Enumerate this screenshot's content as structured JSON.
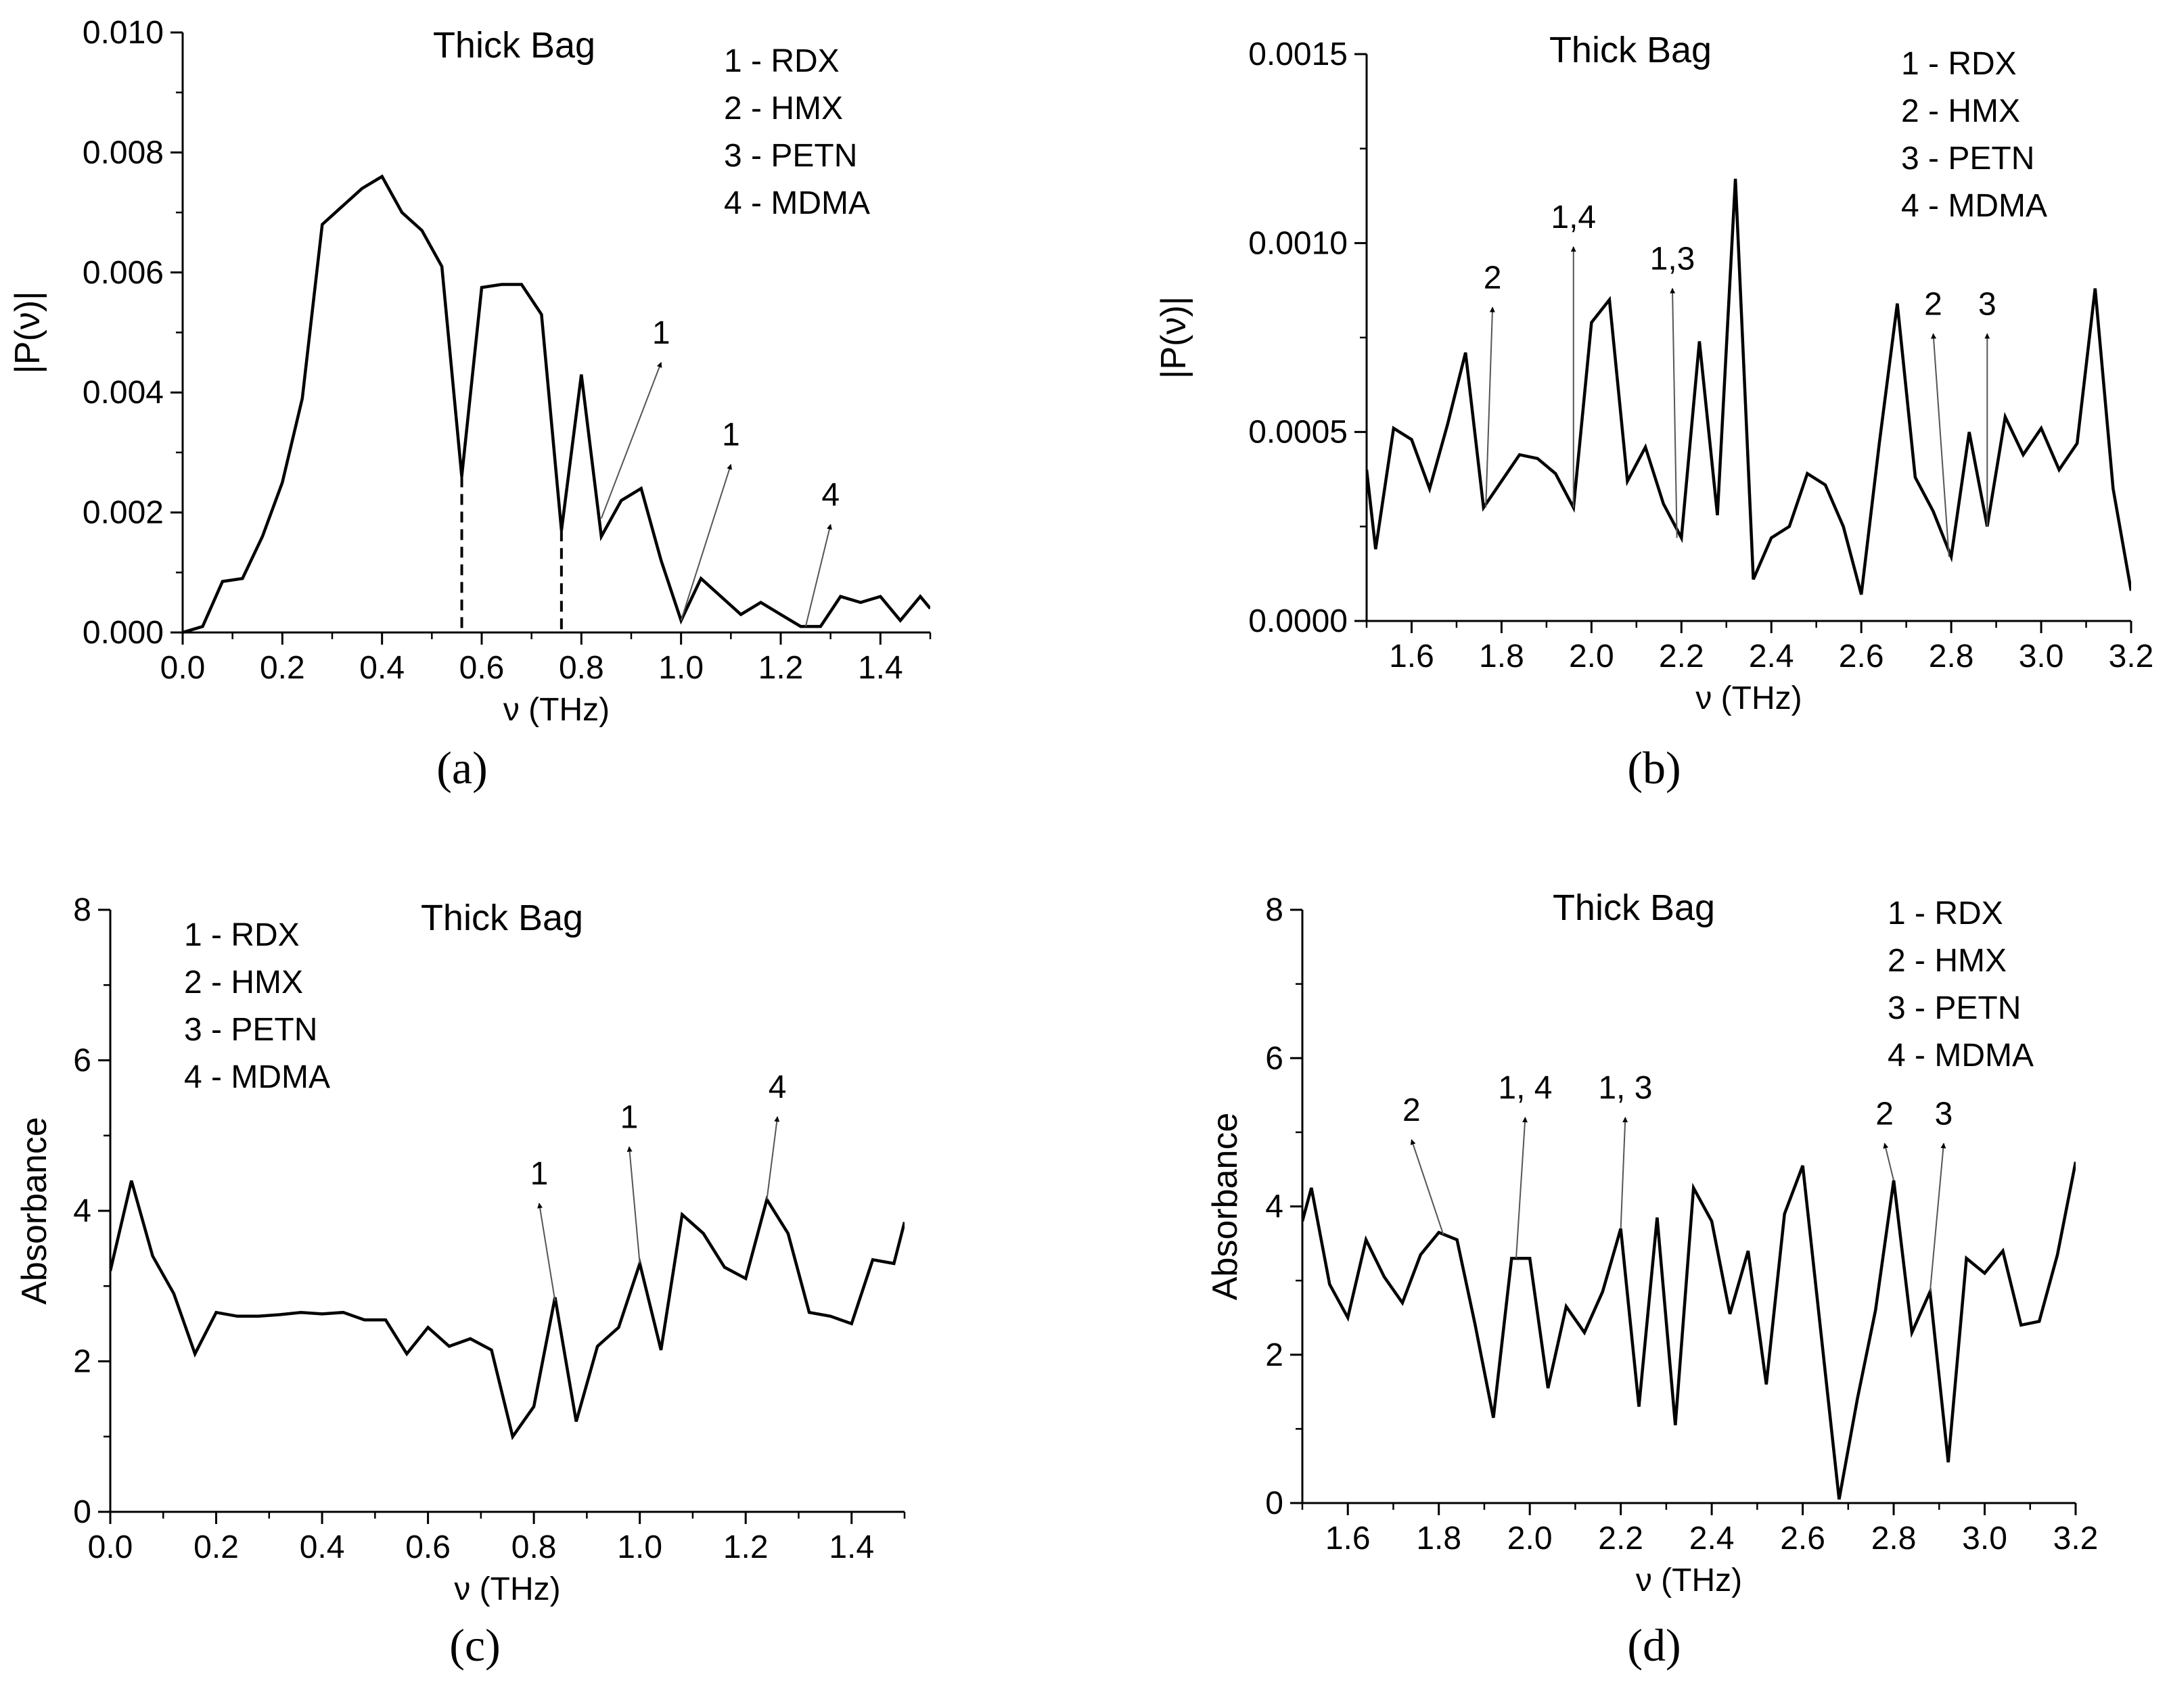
{
  "chart_data": [
    {
      "type": "line",
      "panel_label": "(a)",
      "title": "Thick Bag",
      "xlabel": "ν (THz)",
      "ylabel": "|P(ν)|",
      "xlim": [
        0.0,
        1.5
      ],
      "ylim": [
        0.0,
        0.01
      ],
      "xticks": [
        0.0,
        0.2,
        0.4,
        0.6,
        0.8,
        1.0,
        1.2,
        1.4
      ],
      "xtick_labels": [
        "0.0",
        "0.2",
        "0.4",
        "0.6",
        "0.8",
        "1.0",
        "1.2",
        "1.4"
      ],
      "yticks": [
        0.0,
        0.002,
        0.004,
        0.006,
        0.008,
        0.01
      ],
      "ytick_labels": [
        "0.000",
        "0.002",
        "0.004",
        "0.006",
        "0.008",
        "0.010"
      ],
      "legend": [
        "1 - RDX",
        "2 - HMX",
        "3 - PETN",
        "4 - MDMA"
      ],
      "legend_position": "top-right",
      "series": [
        {
          "name": "Thick Bag",
          "x": [
            0.0,
            0.04,
            0.08,
            0.12,
            0.16,
            0.2,
            0.24,
            0.28,
            0.32,
            0.36,
            0.4,
            0.44,
            0.48,
            0.52,
            0.56,
            0.6,
            0.64,
            0.68,
            0.72,
            0.76,
            0.8,
            0.84,
            0.88,
            0.92,
            0.96,
            1.0,
            1.04,
            1.08,
            1.12,
            1.16,
            1.2,
            1.24,
            1.28,
            1.32,
            1.36,
            1.4,
            1.44,
            1.48,
            1.5
          ],
          "y": [
            0.0,
            0.0001,
            0.00085,
            0.0009,
            0.0016,
            0.0025,
            0.0039,
            0.0068,
            0.0071,
            0.0074,
            0.0076,
            0.007,
            0.0067,
            0.0061,
            0.0026,
            0.00575,
            0.0058,
            0.0058,
            0.0053,
            0.0017,
            0.0043,
            0.0016,
            0.0022,
            0.0024,
            0.0012,
            0.0002,
            0.0009,
            0.0006,
            0.0003,
            0.0005,
            0.0003,
            0.0001,
            0.0001,
            0.0006,
            0.0005,
            0.0006,
            0.0002,
            0.0006,
            0.0004
          ]
        }
      ],
      "dashed_markers": [
        {
          "x": 0.56,
          "y": 0.0026
        },
        {
          "x": 0.76,
          "y": 0.0017
        }
      ],
      "annotations": [
        {
          "text": "1",
          "from": [
            0.84,
            0.0019
          ],
          "to": [
            0.96,
            0.0045
          ]
        },
        {
          "text": "1",
          "from": [
            1.0,
            0.0002
          ],
          "to": [
            1.1,
            0.0028
          ]
        },
        {
          "text": "4",
          "from": [
            1.25,
            0.0001
          ],
          "to": [
            1.3,
            0.0018
          ]
        }
      ]
    },
    {
      "type": "line",
      "panel_label": "(b)",
      "title": "Thick Bag",
      "xlabel": "ν (THz)",
      "ylabel": "|P(ν)|",
      "xlim": [
        1.5,
        3.2
      ],
      "ylim": [
        0.0,
        0.0015
      ],
      "xticks": [
        1.6,
        1.8,
        2.0,
        2.2,
        2.4,
        2.6,
        2.8,
        3.0,
        3.2
      ],
      "xtick_labels": [
        "1.6",
        "1.8",
        "2.0",
        "2.2",
        "2.4",
        "2.6",
        "2.8",
        "3.0",
        "3.2"
      ],
      "yticks": [
        0.0,
        0.0005,
        0.001,
        0.0015
      ],
      "ytick_labels": [
        "0.0000",
        "0.0005",
        "0.0010",
        "0.0015"
      ],
      "legend": [
        "1 - RDX",
        "2 - HMX",
        "3 - PETN",
        "4 - MDMA"
      ],
      "legend_position": "top-right",
      "series": [
        {
          "name": "Thick Bag",
          "x": [
            1.5,
            1.52,
            1.56,
            1.6,
            1.64,
            1.68,
            1.72,
            1.76,
            1.8,
            1.84,
            1.88,
            1.92,
            1.96,
            2.0,
            2.04,
            2.08,
            2.12,
            2.16,
            2.2,
            2.24,
            2.28,
            2.32,
            2.36,
            2.4,
            2.44,
            2.48,
            2.52,
            2.56,
            2.6,
            2.64,
            2.68,
            2.72,
            2.76,
            2.8,
            2.84,
            2.88,
            2.92,
            2.96,
            3.0,
            3.04,
            3.08,
            3.12,
            3.16,
            3.2
          ],
          "y": [
            0.0004,
            0.00019,
            0.00051,
            0.00048,
            0.00035,
            0.00052,
            0.00071,
            0.0003,
            0.00037,
            0.00044,
            0.00043,
            0.00039,
            0.0003,
            0.00079,
            0.00085,
            0.00037,
            0.00046,
            0.00031,
            0.00022,
            0.00074,
            0.00028,
            0.00117,
            0.00011,
            0.00022,
            0.00025,
            0.00039,
            0.00036,
            0.00025,
            7e-05,
            0.00047,
            0.00084,
            0.00038,
            0.00029,
            0.00017,
            0.0005,
            0.00025,
            0.00054,
            0.00044,
            0.00051,
            0.0004,
            0.00047,
            0.00088,
            0.00035,
            8e-05
          ]
        }
      ],
      "annotations": [
        {
          "text": "2",
          "from": [
            1.765,
            0.0003
          ],
          "to": [
            1.78,
            0.00083
          ]
        },
        {
          "text": "1,4",
          "from": [
            1.96,
            0.0003
          ],
          "to": [
            1.96,
            0.00099
          ]
        },
        {
          "text": "1,3",
          "from": [
            2.19,
            0.00022
          ],
          "to": [
            2.18,
            0.00088
          ]
        },
        {
          "text": "2",
          "from": [
            2.795,
            0.00017
          ],
          "to": [
            2.76,
            0.00076
          ]
        },
        {
          "text": "3",
          "from": [
            2.88,
            0.00025
          ],
          "to": [
            2.88,
            0.00076
          ]
        }
      ]
    },
    {
      "type": "line",
      "panel_label": "(c)",
      "title": "Thick Bag",
      "xlabel": "ν (THz)",
      "ylabel": "Absorbance",
      "xlim": [
        0.0,
        1.5
      ],
      "ylim": [
        0,
        8
      ],
      "xticks": [
        0.0,
        0.2,
        0.4,
        0.6,
        0.8,
        1.0,
        1.2,
        1.4
      ],
      "xtick_labels": [
        "0.0",
        "0.2",
        "0.4",
        "0.6",
        "0.8",
        "1.0",
        "1.2",
        "1.4"
      ],
      "yticks": [
        0,
        2,
        4,
        6,
        8
      ],
      "ytick_labels": [
        "0",
        "2",
        "4",
        "6",
        "8"
      ],
      "legend": [
        "1 - RDX",
        "2 - HMX",
        "3 - PETN",
        "4 - MDMA"
      ],
      "legend_position": "top-left",
      "series": [
        {
          "name": "Thick Bag",
          "x": [
            0.0,
            0.04,
            0.08,
            0.12,
            0.16,
            0.2,
            0.24,
            0.28,
            0.32,
            0.36,
            0.4,
            0.44,
            0.48,
            0.52,
            0.56,
            0.6,
            0.64,
            0.68,
            0.72,
            0.76,
            0.8,
            0.84,
            0.88,
            0.92,
            0.96,
            1.0,
            1.04,
            1.08,
            1.12,
            1.16,
            1.2,
            1.24,
            1.28,
            1.32,
            1.36,
            1.4,
            1.44,
            1.48,
            1.5
          ],
          "y": [
            3.2,
            4.4,
            3.4,
            2.9,
            2.1,
            2.65,
            2.6,
            2.6,
            2.62,
            2.65,
            2.63,
            2.65,
            2.55,
            2.55,
            2.1,
            2.45,
            2.2,
            2.3,
            2.15,
            1.0,
            1.4,
            2.85,
            1.2,
            2.2,
            2.45,
            3.3,
            2.15,
            3.95,
            3.7,
            3.25,
            3.1,
            4.15,
            3.7,
            2.65,
            2.6,
            2.5,
            3.35,
            3.3,
            3.85
          ]
        }
      ],
      "annotations": [
        {
          "text": "1",
          "from": [
            0.84,
            2.8
          ],
          "to": [
            0.81,
            4.1
          ]
        },
        {
          "text": "1",
          "from": [
            1.0,
            3.3
          ],
          "to": [
            0.98,
            4.85
          ]
        },
        {
          "text": "4",
          "from": [
            1.24,
            4.15
          ],
          "to": [
            1.26,
            5.25
          ]
        }
      ]
    },
    {
      "type": "line",
      "panel_label": "(d)",
      "title": "Thick Bag",
      "xlabel": "ν (THz)",
      "ylabel": "Absorbance",
      "xlim": [
        1.5,
        3.2
      ],
      "ylim": [
        0,
        8
      ],
      "xticks": [
        1.6,
        1.8,
        2.0,
        2.2,
        2.4,
        2.6,
        2.8,
        3.0,
        3.2
      ],
      "xtick_labels": [
        "1.6",
        "1.8",
        "2.0",
        "2.2",
        "2.4",
        "2.6",
        "2.8",
        "3.0",
        "3.2"
      ],
      "yticks": [
        0,
        2,
        4,
        6,
        8
      ],
      "ytick_labels": [
        "0",
        "2",
        "4",
        "6",
        "8"
      ],
      "legend": [
        "1 - RDX",
        "2 - HMX",
        "3 - PETN",
        "4 - MDMA"
      ],
      "legend_position": "top-right",
      "series": [
        {
          "name": "Thick Bag",
          "x": [
            1.5,
            1.52,
            1.56,
            1.6,
            1.64,
            1.68,
            1.72,
            1.76,
            1.8,
            1.84,
            1.88,
            1.92,
            1.96,
            2.0,
            2.04,
            2.08,
            2.12,
            2.16,
            2.2,
            2.24,
            2.28,
            2.32,
            2.36,
            2.4,
            2.44,
            2.48,
            2.52,
            2.56,
            2.6,
            2.64,
            2.68,
            2.72,
            2.76,
            2.8,
            2.84,
            2.88,
            2.92,
            2.96,
            3.0,
            3.04,
            3.08,
            3.12,
            3.16,
            3.2
          ],
          "y": [
            3.8,
            4.25,
            2.95,
            2.5,
            3.55,
            3.05,
            2.7,
            3.35,
            3.65,
            3.55,
            2.4,
            1.15,
            3.3,
            3.3,
            1.55,
            2.65,
            2.3,
            2.85,
            3.7,
            1.3,
            3.85,
            1.05,
            4.25,
            3.8,
            2.55,
            3.4,
            1.6,
            3.9,
            4.55,
            2.3,
            0.05,
            1.4,
            2.6,
            4.35,
            2.3,
            2.85,
            0.55,
            3.3,
            3.1,
            3.4,
            2.4,
            2.45,
            3.35,
            4.6
          ]
        }
      ],
      "annotations": [
        {
          "text": "2",
          "from": [
            1.81,
            3.62
          ],
          "to": [
            1.74,
            4.9
          ]
        },
        {
          "text": "1, 4",
          "from": [
            1.97,
            3.3
          ],
          "to": [
            1.99,
            5.2
          ]
        },
        {
          "text": "1, 3",
          "from": [
            2.2,
            3.7
          ],
          "to": [
            2.21,
            5.2
          ]
        },
        {
          "text": "2",
          "from": [
            2.8,
            4.35
          ],
          "to": [
            2.78,
            4.85
          ]
        },
        {
          "text": "3",
          "from": [
            2.88,
            2.85
          ],
          "to": [
            2.91,
            4.85
          ]
        }
      ]
    }
  ]
}
